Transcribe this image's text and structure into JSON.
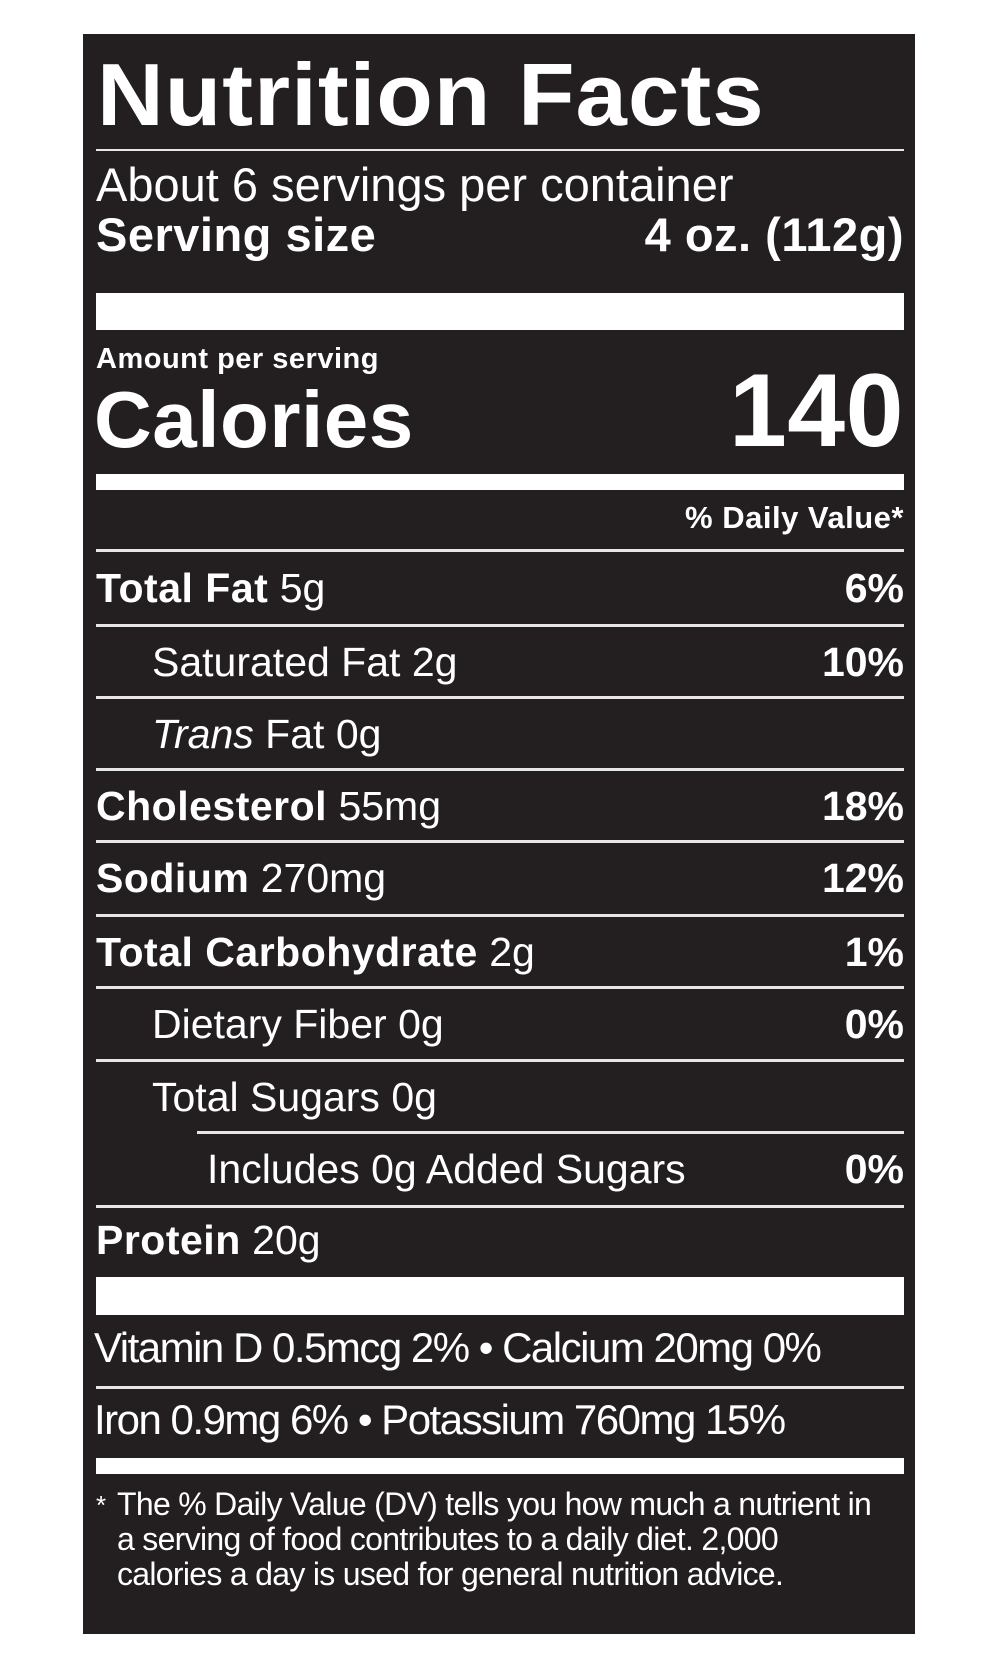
{
  "title": "Nutrition Facts",
  "servings_per_container": "About 6 servings per container",
  "serving_size_label": "Serving size",
  "serving_size_value": "4 oz. (112g)",
  "amount_per_serving": "Amount per serving",
  "calories_label": "Calories",
  "calories_value": "140",
  "daily_value_header": "% Daily Value*",
  "nutrients": [
    {
      "name": "Total Fat",
      "amount": "5g",
      "dv": "6%"
    },
    {
      "name": "Saturated Fat",
      "amount": "2g",
      "dv": "10%"
    },
    {
      "name_italic": "Trans",
      "name": "Fat",
      "amount": "0g",
      "dv": ""
    },
    {
      "name": "Cholesterol",
      "amount": "55mg",
      "dv": "18%"
    },
    {
      "name": "Sodium",
      "amount": "270mg",
      "dv": "12%"
    },
    {
      "name": "Total Carbohydrate",
      "amount": "2g",
      "dv": "1%"
    },
    {
      "name": "Dietary Fiber",
      "amount": "0g",
      "dv": "0%"
    },
    {
      "name": "Total Sugars",
      "amount": "0g",
      "dv": ""
    },
    {
      "name": "Includes 0g Added Sugars",
      "amount": "",
      "dv": "0%"
    },
    {
      "name": "Protein",
      "amount": "20g",
      "dv": ""
    }
  ],
  "micros": {
    "line1": "Vitamin D 0.5mcg 2% • Calcium 20mg 0%",
    "line2": "Iron 0.9mg 6% • Potassium 760mg 15%"
  },
  "footnote_mark": "*",
  "footnote": "The % Daily Value (DV) tells you how much a nutrient in a serving of food contributes to a daily diet. 2,000 calories a day is used for general nutrition advice."
}
